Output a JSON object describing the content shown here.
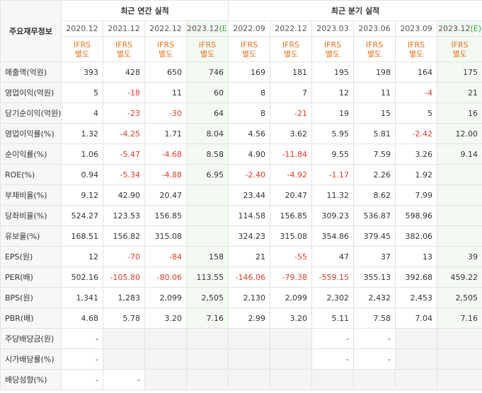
{
  "header": {
    "label_title": "주요재무정보",
    "annual_group": "최근 연간 실적",
    "quarter_group": "최근 분기 실적",
    "gaap_line1": "IFRS",
    "gaap_line2": "별도"
  },
  "periods": [
    {
      "label": "2020.12",
      "est": ""
    },
    {
      "label": "2021.12",
      "est": ""
    },
    {
      "label": "2022.12",
      "est": ""
    },
    {
      "label": "2023.12",
      "est": "(E)"
    },
    {
      "label": "2022.09",
      "est": ""
    },
    {
      "label": "2022.12",
      "est": ""
    },
    {
      "label": "2023.03",
      "est": ""
    },
    {
      "label": "2023.06",
      "est": ""
    },
    {
      "label": "2023.09",
      "est": ""
    },
    {
      "label": "2023.12",
      "est": "(E)"
    }
  ],
  "rows": [
    {
      "label": "매출액(억원)",
      "values": [
        "393",
        "428",
        "650",
        "746",
        "169",
        "181",
        "195",
        "198",
        "164",
        "175"
      ]
    },
    {
      "label": "영업이익(억원)",
      "values": [
        "5",
        "-18",
        "11",
        "60",
        "8",
        "7",
        "12",
        "11",
        "-4",
        "21"
      ]
    },
    {
      "label": "당기순이익(억원)",
      "values": [
        "4",
        "-23",
        "-30",
        "64",
        "8",
        "-21",
        "19",
        "15",
        "5",
        "16"
      ]
    },
    {
      "label": "영업이익률(%)",
      "values": [
        "1.32",
        "-4.25",
        "1.71",
        "8.04",
        "4.56",
        "3.62",
        "5.95",
        "5.81",
        "-2.42",
        "12.00"
      ]
    },
    {
      "label": "순이익률(%)",
      "values": [
        "1.06",
        "-5.47",
        "-4.68",
        "8.58",
        "4.90",
        "-11.84",
        "9.55",
        "7.59",
        "3.26",
        "9.14"
      ]
    },
    {
      "label": "ROE(%)",
      "values": [
        "0.94",
        "-5.34",
        "-4.88",
        "6.95",
        "-2.40",
        "-4.92",
        "-1.17",
        "2.26",
        "1.92",
        ""
      ]
    },
    {
      "label": "부채비율(%)",
      "values": [
        "9.12",
        "42.90",
        "20.47",
        "",
        "23.44",
        "20.47",
        "11.32",
        "8.62",
        "7.99",
        ""
      ]
    },
    {
      "label": "당좌비율(%)",
      "values": [
        "524.27",
        "123.53",
        "156.85",
        "",
        "114.58",
        "156.85",
        "309.23",
        "536.87",
        "598.96",
        ""
      ]
    },
    {
      "label": "유보율(%)",
      "values": [
        "168.51",
        "156.82",
        "315.08",
        "",
        "324.23",
        "315.08",
        "354.86",
        "379.45",
        "382.06",
        ""
      ]
    },
    {
      "label": "EPS(원)",
      "values": [
        "12",
        "-70",
        "-84",
        "158",
        "21",
        "-55",
        "47",
        "37",
        "13",
        "39"
      ]
    },
    {
      "label": "PER(배)",
      "values": [
        "502.16",
        "-105.80",
        "-80.06",
        "113.55",
        "-146.06",
        "-79.38",
        "-559.15",
        "355.13",
        "392.68",
        "459.22"
      ]
    },
    {
      "label": "BPS(원)",
      "values": [
        "1,341",
        "1,283",
        "2,099",
        "2,505",
        "2,130",
        "2,099",
        "2,302",
        "2,432",
        "2,453",
        "2,505"
      ]
    },
    {
      "label": "PBR(배)",
      "values": [
        "4.68",
        "5.78",
        "3.20",
        "7.16",
        "2.99",
        "3.20",
        "5.11",
        "7.58",
        "7.04",
        "7.16"
      ]
    },
    {
      "label": "주당배당금(원)",
      "values": [
        "-",
        null,
        null,
        null,
        null,
        null,
        "-",
        "-",
        null,
        null
      ]
    },
    {
      "label": "시가배당률(%)",
      "values": [
        "-",
        null,
        null,
        null,
        null,
        null,
        "-",
        "-",
        null,
        null
      ]
    },
    {
      "label": "배당성향(%)",
      "values": [
        "-",
        "-",
        null,
        null,
        null,
        null,
        null,
        null,
        null,
        null
      ]
    }
  ],
  "colors": {
    "negative": "#e03a2b",
    "gaap": "#e8711c",
    "estimate_tag": "#3aa444",
    "estimate_bg": "#f2faf2",
    "label_bg": "#f7f7f7"
  }
}
